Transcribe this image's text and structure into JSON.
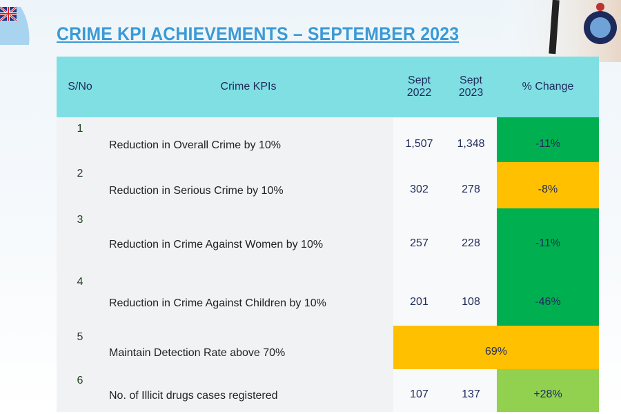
{
  "title": "CRIME KPI ACHIEVEMENTS – SEPTEMBER 2023",
  "table": {
    "header": [
      "S/No",
      "Crime KPIs",
      "Sept 2022",
      "Sept 2023",
      "% Change"
    ],
    "rows": [
      [
        "1",
        "Reduction in Overall Crime by 10%",
        "1,507",
        "1,348",
        "-11%"
      ],
      [
        "2",
        "Reduction in Serious Crime by 10%",
        "302",
        "278",
        "-8%"
      ],
      [
        "3",
        "Reduction in Crime Against Women by 10%",
        "257",
        "228",
        "-11%"
      ],
      [
        "4",
        "Reduction in Crime Against Children by 10%",
        "201",
        "108",
        "-46%"
      ],
      [
        "5",
        "Maintain Detection Rate above 70%",
        "69%"
      ],
      [
        "6",
        "No. of Illicit drugs cases registered",
        "107",
        "137",
        "+28%"
      ]
    ]
  }
}
